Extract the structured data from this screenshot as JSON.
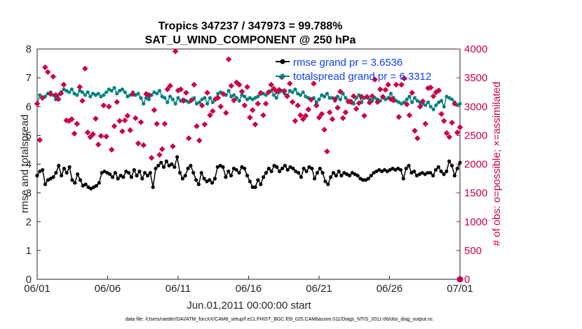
{
  "chart_data": {
    "type": "line",
    "title_line1": "Tropics 347237 / 347973 = 99.788%",
    "title_line2": "SAT_U_WIND_COMPONENT @ 250 hPa",
    "xlabel": "Jun.01,2011 00:00:00 start",
    "ylabel_left": "rmse and totalspread",
    "ylabel_right": "# of obs: o=possible; ×=assimilated",
    "footer": "data file: /Users/raeder/DAI/ATM_forcXX/CAM6_setup/f.e21.FHIST_BGC.f09_025.CAM6assim.011/Diags_NTrS_2011-06/obs_diag_output.nc",
    "x_ticks": [
      "06/01",
      "06/06",
      "06/11",
      "06/16",
      "06/21",
      "06/26",
      "07/01"
    ],
    "x_range_days": [
      0,
      30
    ],
    "ylim_left": [
      0,
      8
    ],
    "y_ticks_left": [
      "0",
      "1",
      "2",
      "3",
      "4",
      "5",
      "6",
      "7",
      "8"
    ],
    "ylim_right": [
      0,
      4000
    ],
    "y_ticks_right": [
      "0",
      "500",
      "1000",
      "1500",
      "2000",
      "2500",
      "3000",
      "3500",
      "4000"
    ],
    "legend": [
      {
        "label": "rmse  grand pr = 3.6536",
        "color": "#000000"
      },
      {
        "label": "totalspread grand pr = 6.3312",
        "color": "#00807f"
      }
    ],
    "series": [
      {
        "name": "rmse",
        "axis": "left",
        "color": "#000000",
        "values": [
          3.6,
          3.75,
          3.8,
          3.3,
          3.45,
          3.5,
          3.55,
          3.7,
          3.95,
          3.6,
          3.85,
          3.7,
          3.9,
          3.45,
          3.35,
          3.65,
          3.45,
          3.25,
          3.3,
          3.2,
          3.15,
          3.2,
          3.25,
          3.35,
          3.7,
          3.75,
          3.7,
          3.65,
          3.55,
          3.7,
          3.5,
          3.6,
          3.55,
          3.75,
          3.7,
          3.55,
          3.8,
          3.6,
          3.75,
          3.5,
          3.7,
          3.6,
          3.7,
          3.2,
          3.85,
          3.95,
          4.05,
          3.9,
          4.1,
          3.95,
          4.0,
          3.9,
          4.25,
          3.7,
          3.5,
          3.6,
          3.85,
          3.95,
          3.7,
          3.45,
          3.3,
          3.7,
          3.5,
          3.4,
          3.45,
          3.35,
          3.5,
          3.9,
          3.95,
          3.9,
          3.55,
          3.75,
          3.6,
          3.85,
          3.8,
          3.7,
          3.9,
          3.85,
          3.6,
          3.4,
          3.2,
          3.2,
          3.45,
          3.3,
          3.55,
          3.7,
          3.85,
          3.75,
          3.95,
          3.9,
          3.75,
          3.85,
          3.95,
          3.8,
          3.9,
          3.85,
          3.75,
          3.7,
          3.55,
          3.85,
          3.75,
          3.9,
          3.85,
          3.5,
          3.7,
          3.85,
          3.7,
          3.4,
          3.3,
          3.55,
          3.7,
          3.6,
          3.75,
          3.6,
          3.7,
          3.65,
          3.6,
          3.7,
          3.65,
          3.6,
          3.5,
          3.45,
          3.45,
          3.5,
          3.6,
          3.7,
          3.75,
          3.8,
          3.75,
          3.8,
          3.75,
          3.8,
          3.85,
          3.8,
          3.85,
          3.8,
          3.5,
          3.85,
          3.95,
          3.7,
          3.75,
          3.6,
          3.65,
          3.7,
          3.65,
          3.7,
          3.7,
          3.6,
          3.8,
          3.9,
          3.75,
          3.65,
          3.75,
          4.1,
          3.95,
          3.6,
          3.85,
          4.05
        ]
      },
      {
        "name": "totalspread",
        "axis": "left",
        "color": "#00807f",
        "values": [
          6.1,
          6.4,
          6.3,
          6.35,
          6.45,
          6.5,
          6.4,
          6.25,
          6.4,
          6.5,
          6.6,
          6.55,
          6.5,
          6.6,
          6.45,
          6.4,
          6.55,
          6.5,
          6.4,
          6.5,
          6.35,
          6.45,
          6.4,
          6.45,
          6.35,
          6.4,
          6.5,
          6.6,
          6.55,
          6.65,
          6.45,
          6.55,
          6.6,
          6.5,
          6.35,
          6.4,
          6.5,
          6.4,
          6.45,
          6.3,
          6.1,
          6.3,
          6.25,
          6.4,
          6.5,
          6.45,
          6.55,
          6.35,
          6.3,
          6.15,
          6.35,
          6.25,
          6.1,
          6.3,
          6.2,
          6.25,
          6.2,
          6.15,
          6.25,
          6.3,
          6.1,
          6.15,
          6.25,
          6.3,
          6.1,
          6.3,
          6.15,
          6.25,
          6.45,
          6.5,
          6.45,
          6.4,
          6.55,
          6.35,
          6.4,
          6.3,
          6.2,
          6.4,
          6.35,
          6.25,
          6.3,
          6.25,
          6.3,
          6.35,
          6.5,
          6.45,
          6.4,
          6.5,
          6.55,
          6.4,
          6.3,
          6.5,
          6.55,
          6.45,
          6.35,
          6.55,
          6.5,
          6.6,
          6.45,
          6.4,
          6.5,
          6.35,
          6.3,
          6.25,
          6.3,
          6.15,
          6.25,
          6.4,
          6.35,
          6.45,
          6.3,
          6.3,
          6.2,
          6.35,
          6.25,
          6.45,
          6.3,
          6.15,
          6.2,
          6.1,
          6.3,
          6.4,
          6.15,
          6.3,
          6.35,
          6.25,
          6.2,
          6.3,
          6.25,
          6.2,
          6.35,
          6.25,
          6.3,
          6.45,
          6.3,
          6.2,
          6.15,
          6.1,
          6.15,
          6.25,
          6.35,
          6.15,
          6.3,
          6.2,
          6.15,
          6.1,
          6.05,
          6.15,
          6.0,
          5.9,
          6.05,
          6.15,
          6.2,
          6.0,
          6.35,
          6.3,
          6.25,
          6.15,
          6.05,
          6.1
        ]
      },
      {
        "name": "# obs possible",
        "axis": "right",
        "color": "#cc0044",
        "values": [
          3050,
          2420,
          3150,
          3680,
          3600,
          3220,
          3520,
          3200,
          3130,
          3230,
          3380,
          2760,
          2750,
          2780,
          2530,
          2700,
          3340,
          3100,
          3660,
          2550,
          2470,
          2520,
          2790,
          2340,
          2490,
          3020,
          2480,
          3000,
          2250,
          2660,
          3080,
          2750,
          2570,
          2760,
          2840,
          2590,
          3220,
          2800,
          2360,
          2730,
          2330,
          3220,
          3200,
          2110,
          2940,
          2700,
          2160,
          2260,
          2700,
          3300,
          3360,
          2310,
          3960,
          3280,
          3300,
          3100,
          3240,
          2450,
          3110,
          3380,
          2660,
          2410,
          3020,
          2690,
          3240,
          2850,
          2920,
          3130,
          3150,
          3000,
          3220,
          2890,
          3820,
          3360,
          3110,
          3420,
          3380,
          3260,
          3020,
          3340,
          2810,
          2940,
          2690,
          3050,
          3230,
          2850,
          3050,
          3250,
          3380,
          3310,
          3260,
          3290,
          3510,
          3270,
          3180,
          3400,
          3080,
          2750,
          3020,
          2850,
          2780,
          2840,
          2950,
          3120,
          3400,
          3020,
          2810,
          2870,
          2600,
          2220,
          2900,
          2780,
          3130,
          2980,
          3260,
          2800,
          2900,
          3090,
          3080,
          3180,
          2960,
          3060,
          3170,
          2840,
          3170,
          3070,
          3180,
          3470,
          3080,
          3300,
          3170,
          3290,
          3380,
          3130,
          3110,
          3380,
          2820,
          3380,
          3490,
          3040,
          2850,
          3240,
          2580,
          2450,
          3000,
          3090,
          2700,
          3320,
          3330,
          3180,
          3250,
          3280,
          2870,
          2750,
          2540,
          2470,
          2720,
          3050,
          2550,
          2640
        ]
      }
    ]
  }
}
